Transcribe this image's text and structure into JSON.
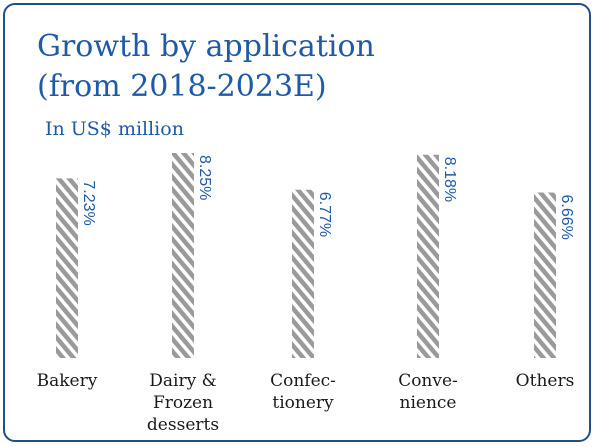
{
  "chart_data": {
    "type": "bar",
    "title": "Growth by application\n(from 2018-2023E)",
    "subtitle": "In US$ million",
    "categories": [
      "Bakery",
      "Dairy &\nFrozen\ndesserts",
      "Confec-\ntionery",
      "Conve-\nnience",
      "Others"
    ],
    "values": [
      7.23,
      8.25,
      6.77,
      8.18,
      6.66
    ],
    "value_labels": [
      "7.23%",
      "8.25%",
      "6.77%",
      "8.18%",
      "6.66%"
    ],
    "ylim": [
      0,
      8.25
    ],
    "grid": false,
    "legend": "none",
    "bar_style": "diagonal-hatch",
    "colors": {
      "bar_hatch": "#9a9a9a",
      "value_label": "#1f5aa6",
      "title": "#1f5aa6",
      "border": "#1f4e8c"
    }
  }
}
